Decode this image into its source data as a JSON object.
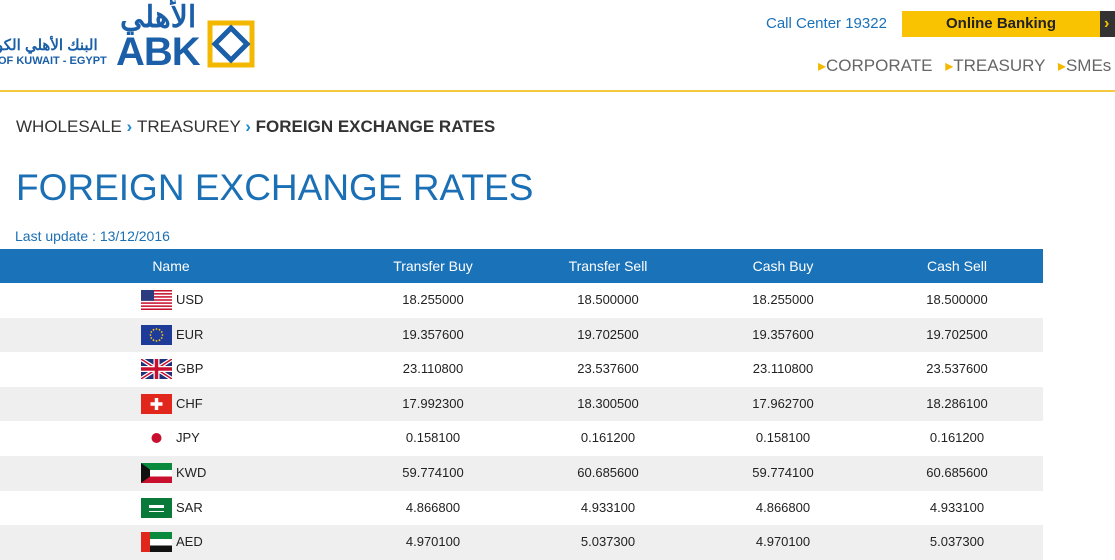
{
  "header": {
    "logo_arabic_name": "البنك الأهلي الكو",
    "logo_english_name": "OF KUWAIT - EGYPT",
    "logo_arabic": "الأهلي",
    "logo_text": "ABK",
    "call_center": "Call Center 19322",
    "online_banking": "Online Banking",
    "nav": [
      "CORPORATE",
      "TREASURY",
      "SMEs"
    ]
  },
  "breadcrumb": [
    "WHOLESALE",
    "TREASUREY",
    "FOREIGN EXCHANGE RATES"
  ],
  "page": {
    "title": "FOREIGN EXCHANGE RATES",
    "last_update": "Last update : 13/12/2016"
  },
  "table": {
    "columns": [
      "Name",
      "Transfer Buy",
      "Transfer Sell",
      "Cash Buy",
      "Cash Sell"
    ],
    "rows": [
      [
        "USD",
        "18.255000",
        "18.500000",
        "18.255000",
        "18.500000"
      ],
      [
        "EUR",
        "19.357600",
        "19.702500",
        "19.357600",
        "19.702500"
      ],
      [
        "GBP",
        "23.110800",
        "23.537600",
        "23.110800",
        "23.537600"
      ],
      [
        "CHF",
        "17.992300",
        "18.300500",
        "17.962700",
        "18.286100"
      ],
      [
        "JPY",
        "0.158100",
        "0.161200",
        "0.158100",
        "0.161200"
      ],
      [
        "KWD",
        "59.774100",
        "60.685600",
        "59.774100",
        "60.685600"
      ],
      [
        "SAR",
        "4.866800",
        "4.933100",
        "4.866800",
        "4.933100"
      ],
      [
        "AED",
        "4.970100",
        "5.037300",
        "4.970100",
        "5.037300"
      ]
    ]
  }
}
